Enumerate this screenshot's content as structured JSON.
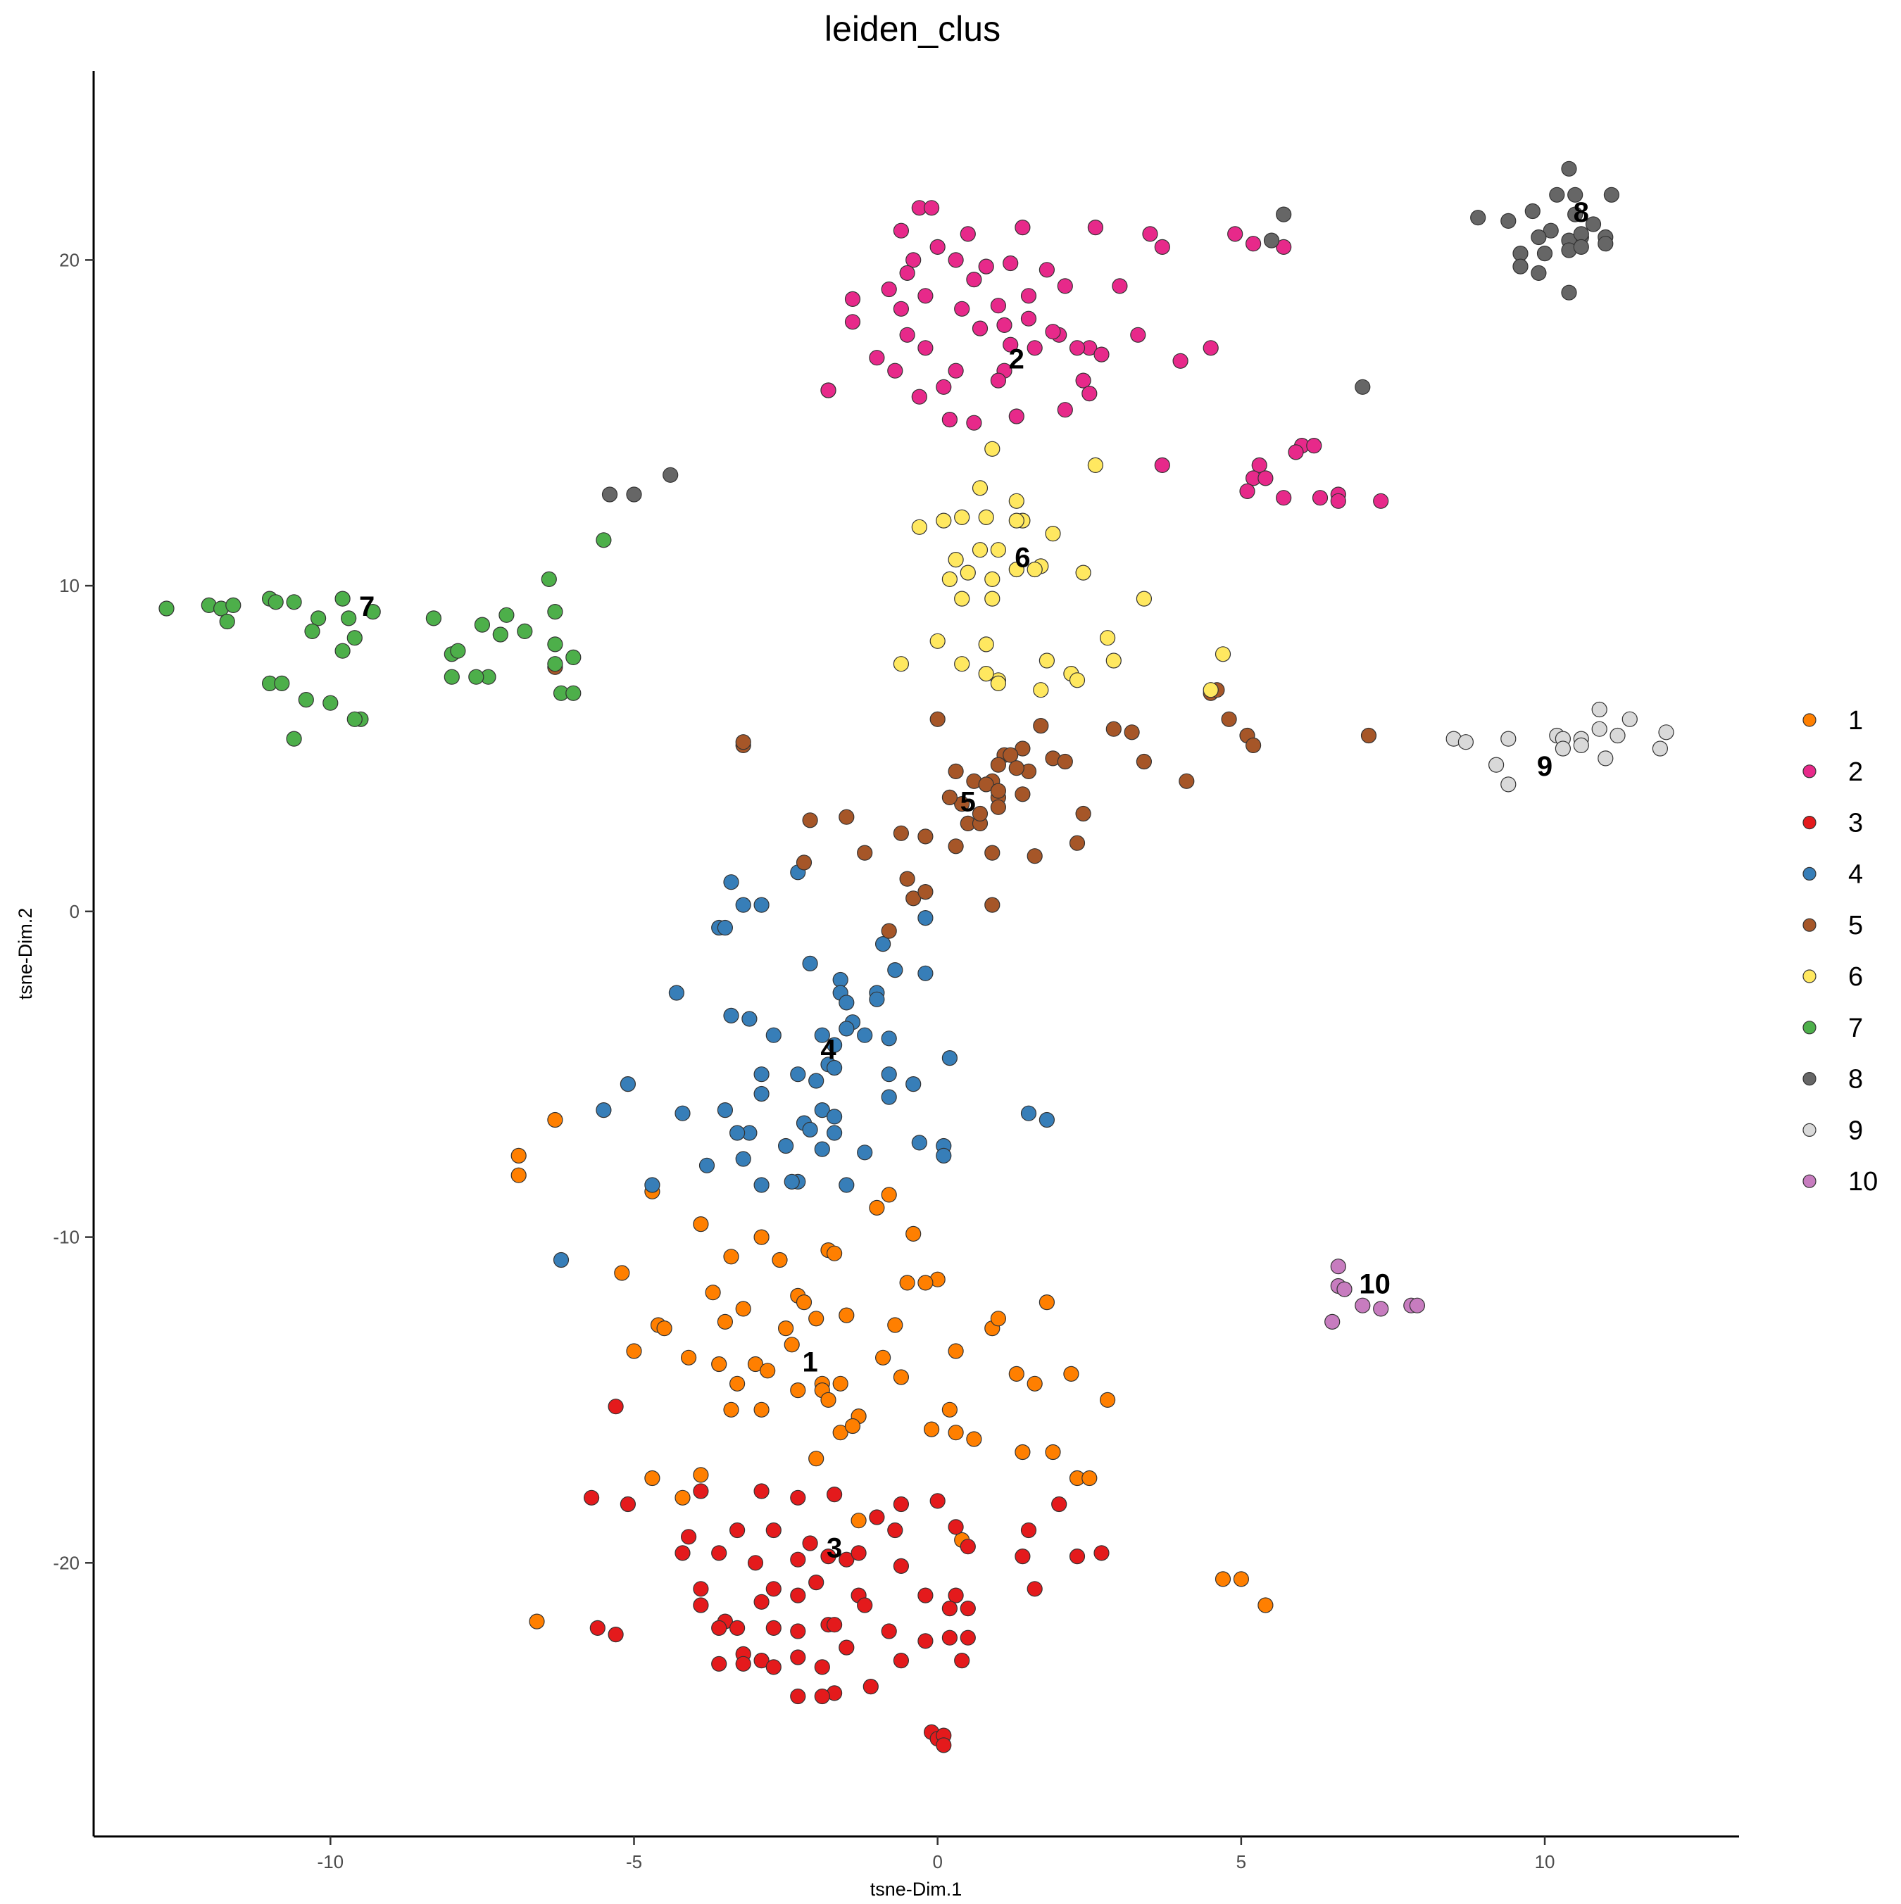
{
  "chart_data": {
    "type": "scatter",
    "title": "leiden_clus",
    "xlabel": "tsne-Dim.1",
    "ylabel": "tsne-Dim.2",
    "xlim": [
      -13.9,
      13.2
    ],
    "ylim": [
      -28.4,
      25.8
    ],
    "xticks": [
      -10,
      -5,
      0,
      5,
      10
    ],
    "yticks": [
      -20,
      -10,
      0,
      10,
      20
    ],
    "xtick_labels": [
      "-10",
      "-5",
      "0",
      "5",
      "10"
    ],
    "ytick_labels": [
      "-20",
      "-10",
      "0",
      "10",
      "20"
    ],
    "grid": false,
    "legend_position": "right",
    "point_outline": "#333333",
    "series": [
      {
        "name": "1",
        "color": "#FF7F00",
        "label": "1",
        "label_pos": [
          -2.1,
          -13.9
        ],
        "x": [
          -6.9,
          -6.9,
          -6.3,
          -4.7,
          -3.9,
          -3.4,
          -2.9,
          -2.6,
          -2.3,
          -2.0,
          -1.8,
          -1.7,
          -1.0,
          -0.8,
          -0.4,
          -0.5,
          0.0,
          -5.2,
          -3.7,
          -3.2,
          -2.5,
          -2.2,
          -1.5,
          -0.7,
          -0.2,
          0.3,
          -4.6,
          -4.1,
          -3.5,
          -3.0,
          -2.4,
          -1.9,
          -1.6,
          -0.9,
          0.9,
          1.0,
          1.8,
          -5.0,
          -4.5,
          -3.6,
          -3.3,
          -2.8,
          -2.3,
          -1.9,
          -1.3,
          -0.6,
          0.2,
          1.3,
          1.6,
          2.2,
          2.8,
          -3.4,
          -2.9,
          -1.8,
          -1.6,
          -1.4,
          -0.1,
          0.3,
          0.6,
          1.4,
          1.9,
          2.3,
          2.5,
          -4.7,
          -4.2,
          -3.9,
          -2.0,
          -1.3,
          0.4,
          4.7,
          5.0,
          5.4,
          -6.6
        ],
        "y": [
          -8.1,
          -7.5,
          -6.4,
          -8.6,
          -9.6,
          -10.6,
          -10.0,
          -10.7,
          -11.8,
          -12.5,
          -10.4,
          -10.5,
          -9.1,
          -8.7,
          -9.9,
          -11.4,
          -11.3,
          -11.1,
          -11.7,
          -12.2,
          -12.8,
          -12.0,
          -12.4,
          -12.7,
          -11.4,
          -13.5,
          -12.7,
          -13.7,
          -12.6,
          -13.9,
          -13.3,
          -14.5,
          -14.5,
          -13.7,
          -12.8,
          -12.5,
          -12.0,
          -13.5,
          -12.8,
          -13.9,
          -14.5,
          -14.1,
          -14.7,
          -14.7,
          -15.5,
          -14.3,
          -15.3,
          -14.2,
          -14.5,
          -14.2,
          -15.0,
          -15.3,
          -15.3,
          -15.0,
          -16.0,
          -15.8,
          -15.9,
          -16.0,
          -16.2,
          -16.6,
          -16.6,
          -17.4,
          -17.4,
          -17.4,
          -18.0,
          -17.3,
          -16.8,
          -18.7,
          -19.3,
          -20.5,
          -20.5,
          -21.3,
          -21.8
        ]
      },
      {
        "name": "2",
        "color": "#E7298A",
        "label": "2",
        "label_pos": [
          1.3,
          16.9
        ],
        "x": [
          -0.3,
          -0.1,
          0.5,
          1.4,
          2.6,
          3.5,
          4.9,
          5.2,
          5.7,
          -0.6,
          -0.4,
          0.0,
          0.8,
          1.2,
          1.8,
          3.7,
          -0.8,
          -0.5,
          0.3,
          0.6,
          1.0,
          1.5,
          2.1,
          3.0,
          -1.4,
          -0.6,
          -0.2,
          0.4,
          1.1,
          1.5,
          2.0,
          -1.4,
          -0.5,
          0.7,
          1.2,
          1.9,
          2.5,
          3.3,
          -1.0,
          -0.2,
          1.6,
          2.3,
          2.7,
          4.0,
          4.5,
          -0.7,
          0.3,
          1.1,
          2.4,
          -1.8,
          -0.3,
          0.1,
          1.0,
          2.5,
          5.3,
          6.0,
          5.9,
          -1.8,
          0.2,
          0.6,
          1.3,
          2.1,
          5.2,
          5.4,
          6.2,
          3.7,
          5.1,
          5.7,
          6.3,
          6.6,
          7.3,
          6.6
        ],
        "y": [
          21.6,
          21.6,
          20.8,
          21.0,
          21.0,
          20.8,
          20.8,
          20.5,
          20.4,
          20.9,
          20.0,
          20.4,
          19.8,
          19.9,
          19.7,
          20.4,
          19.1,
          19.6,
          20.0,
          19.4,
          18.6,
          18.9,
          19.2,
          19.2,
          18.8,
          18.5,
          18.9,
          18.5,
          18.0,
          18.2,
          17.7,
          18.1,
          17.7,
          17.9,
          17.4,
          17.8,
          17.3,
          17.7,
          17.0,
          17.3,
          17.3,
          17.3,
          17.1,
          16.9,
          17.3,
          16.6,
          16.6,
          16.6,
          16.3,
          16.0,
          15.8,
          16.1,
          16.3,
          15.9,
          13.7,
          14.3,
          14.1,
          16.0,
          15.1,
          15.0,
          15.2,
          15.4,
          13.3,
          13.3,
          14.3,
          13.7,
          12.9,
          12.7,
          12.7,
          12.8,
          12.6,
          12.6
        ]
      },
      {
        "name": "3",
        "color": "#E41A1C",
        "label": "3",
        "label_pos": [
          -1.7,
          -19.6
        ],
        "x": [
          -5.3,
          -5.7,
          -5.1,
          -3.9,
          -2.9,
          -2.3,
          -1.7,
          -1.0,
          -0.6,
          0.0,
          -4.1,
          -3.3,
          -2.7,
          -2.1,
          -1.5,
          -0.7,
          0.5,
          1.5,
          2.0,
          -4.2,
          -3.6,
          -3.0,
          -2.3,
          -1.8,
          -1.3,
          -0.6,
          0.3,
          1.4,
          2.3,
          2.7,
          -3.9,
          -2.7,
          -2.3,
          -1.3,
          -0.2,
          0.3,
          1.6,
          -3.9,
          -3.5,
          -2.9,
          -2.0,
          -1.2,
          0.2,
          0.5,
          -5.6,
          -5.3,
          -3.6,
          -3.3,
          -2.7,
          -2.3,
          -1.8,
          -1.7,
          -0.8,
          0.2,
          0.5,
          -3.2,
          -2.9,
          -2.3,
          -1.5,
          -0.6,
          -0.2,
          -3.6,
          -3.2,
          -2.7,
          -1.9,
          -1.1,
          -0.1,
          0.0,
          0.1,
          0.1,
          0.4,
          -2.3,
          -1.7,
          -1.9
        ],
        "y": [
          -15.2,
          -18.0,
          -18.2,
          -17.8,
          -17.8,
          -18.0,
          -17.9,
          -18.6,
          -18.2,
          -18.1,
          -19.2,
          -19.0,
          -19.0,
          -19.4,
          -19.9,
          -19.0,
          -19.5,
          -19.0,
          -18.2,
          -19.7,
          -19.7,
          -20.0,
          -19.9,
          -19.8,
          -19.7,
          -20.1,
          -18.9,
          -19.8,
          -19.8,
          -19.7,
          -20.8,
          -20.8,
          -21.0,
          -21.0,
          -21.0,
          -21.0,
          -20.8,
          -21.3,
          -21.8,
          -21.2,
          -20.6,
          -21.3,
          -21.4,
          -21.4,
          -22.0,
          -22.2,
          -22.0,
          -22.0,
          -22.0,
          -22.1,
          -21.9,
          -21.9,
          -22.1,
          -22.3,
          -22.3,
          -22.8,
          -23.0,
          -22.9,
          -22.6,
          -23.0,
          -22.4,
          -23.1,
          -23.1,
          -23.2,
          -23.2,
          -23.8,
          -25.2,
          -25.4,
          -25.3,
          -25.6,
          -23.0,
          -24.1,
          -24.0,
          -24.1
        ],
        "extra_points_x": [],
        "extra_points_y": []
      },
      {
        "name": "4",
        "color": "#377EB8",
        "label": "4",
        "label_pos": [
          -1.8,
          -4.3
        ],
        "x": [
          -3.4,
          -3.2,
          -2.9,
          -3.6,
          -3.5,
          -2.3,
          -2.1,
          -1.6,
          -1.6,
          -1.5,
          -1.4,
          -1.0,
          -1.0,
          -0.9,
          -0.7,
          -0.2,
          -0.2,
          -4.3,
          -3.4,
          -3.1,
          -2.7,
          -1.9,
          -1.7,
          -1.5,
          -1.2,
          -0.8,
          -2.9,
          -2.3,
          -2.0,
          -1.8,
          -1.7,
          -0.8,
          0.2,
          -3.5,
          -2.9,
          -1.9,
          -1.7,
          -0.8,
          -0.4,
          -4.2,
          -3.1,
          -2.2,
          -1.9,
          -1.7,
          -0.3,
          -3.3,
          -3.2,
          -2.5,
          -2.3,
          -2.4,
          -1.2,
          0.1,
          0.1,
          -3.8,
          -2.9,
          -2.1,
          -1.5,
          1.5,
          1.8,
          -5.5,
          -5.1,
          -6.2,
          -4.7
        ],
        "y": [
          0.9,
          0.2,
          0.2,
          -0.5,
          -0.5,
          1.2,
          -1.6,
          -2.1,
          -2.5,
          -2.8,
          -3.4,
          -2.5,
          -2.7,
          -1.0,
          -1.8,
          -0.2,
          -1.9,
          -2.5,
          -3.2,
          -3.3,
          -3.8,
          -3.8,
          -4.1,
          -3.6,
          -3.8,
          -3.9,
          -5.0,
          -5.0,
          -5.2,
          -4.7,
          -4.8,
          -5.0,
          -4.5,
          -6.1,
          -5.6,
          -6.1,
          -6.3,
          -5.7,
          -5.3,
          -6.2,
          -6.8,
          -6.5,
          -7.3,
          -6.8,
          -7.1,
          -6.8,
          -7.6,
          -7.2,
          -8.3,
          -8.3,
          -7.4,
          -7.2,
          -7.5,
          -7.8,
          -8.4,
          -6.7,
          -8.4,
          -6.2,
          -6.4,
          -6.1,
          -5.3,
          -10.7,
          -8.4
        ]
      },
      {
        "name": "5",
        "color": "#A65628",
        "label": "5",
        "label_pos": [
          0.5,
          3.3
        ],
        "x": [
          -3.2,
          -3.2,
          0.0,
          1.1,
          1.4,
          1.7,
          0.3,
          0.9,
          1.0,
          1.2,
          1.9,
          2.1,
          2.9,
          3.2,
          3.4,
          0.4,
          0.6,
          0.8,
          1.0,
          1.5,
          2.4,
          4.1,
          4.5,
          4.8,
          5.1,
          5.2,
          -2.1,
          -1.5,
          -0.6,
          -0.2,
          0.5,
          0.7,
          1.0,
          1.4,
          -2.2,
          -1.2,
          -0.4,
          0.3,
          0.9,
          1.6,
          2.3,
          -0.5,
          -0.2,
          -0.8,
          0.9,
          -6.3,
          7.1,
          4.6,
          0.2,
          0.7,
          1.0,
          1.3
        ],
        "y": [
          5.1,
          5.2,
          5.9,
          4.8,
          5.0,
          5.7,
          4.3,
          4.0,
          4.5,
          4.8,
          4.7,
          4.6,
          5.6,
          5.5,
          4.6,
          3.3,
          4.0,
          3.9,
          3.5,
          4.3,
          3.0,
          4.0,
          6.7,
          5.9,
          5.4,
          5.1,
          2.8,
          2.9,
          2.4,
          2.3,
          2.7,
          2.7,
          3.2,
          3.6,
          1.5,
          1.8,
          0.4,
          2.0,
          1.8,
          1.7,
          2.1,
          1.0,
          0.6,
          -0.6,
          0.2,
          7.5,
          5.4,
          6.8,
          3.5,
          3.0,
          3.7,
          4.4
        ]
      },
      {
        "name": "6",
        "color": "#FFE860",
        "label": "6",
        "label_pos": [
          1.4,
          10.8
        ],
        "x": [
          0.9,
          0.7,
          1.3,
          1.4,
          2.6,
          -0.3,
          0.1,
          0.4,
          0.8,
          1.3,
          1.9,
          0.3,
          0.7,
          1.0,
          1.7,
          2.4,
          0.2,
          0.5,
          0.9,
          1.3,
          1.6,
          3.4,
          0.0,
          0.8,
          1.0,
          2.8,
          2.9,
          -0.6,
          0.4,
          0.8,
          1.0,
          1.8,
          2.2,
          4.5,
          4.7,
          1.7,
          0.9,
          0.4,
          2.3
        ],
        "y": [
          14.2,
          13.0,
          12.6,
          12.0,
          13.7,
          11.8,
          12.0,
          12.1,
          12.1,
          12.0,
          11.6,
          10.8,
          11.1,
          11.1,
          10.6,
          10.4,
          10.2,
          10.4,
          10.2,
          10.5,
          10.5,
          9.6,
          8.3,
          8.2,
          7.1,
          8.4,
          7.7,
          7.6,
          7.6,
          7.3,
          7.0,
          7.7,
          7.3,
          6.8,
          7.9,
          6.8,
          9.6,
          9.6,
          7.1
        ]
      },
      {
        "name": "7",
        "color": "#4DAF4A",
        "label": "7",
        "label_pos": [
          -9.4,
          9.3
        ],
        "x": [
          -12.7,
          -12.0,
          -11.8,
          -11.6,
          -11.7,
          -11.0,
          -10.9,
          -10.6,
          -9.8,
          -9.7,
          -9.3,
          -10.2,
          -10.3,
          -9.6,
          -9.8,
          -8.3,
          -7.5,
          -7.1,
          -6.8,
          -6.3,
          -8.0,
          -7.9,
          -7.2,
          -7.4,
          -6.4,
          -6.3,
          -6.3,
          -11.0,
          -10.8,
          -10.4,
          -10.0,
          -9.5,
          -8.0,
          -7.6,
          -6.2,
          -6.0,
          -6.0,
          -10.6,
          -9.6,
          -5.5
        ],
        "y": [
          9.3,
          9.4,
          9.3,
          9.4,
          8.9,
          9.6,
          9.5,
          9.5,
          9.6,
          9.0,
          9.2,
          9.0,
          8.6,
          8.4,
          8.0,
          9.0,
          8.8,
          9.1,
          8.6,
          9.2,
          7.9,
          8.0,
          8.5,
          7.2,
          10.2,
          8.2,
          7.6,
          7.0,
          7.0,
          6.5,
          6.4,
          5.9,
          7.2,
          7.2,
          6.7,
          7.8,
          6.7,
          5.3,
          5.9,
          11.4
        ]
      },
      {
        "name": "8",
        "color": "#666666",
        "label": "8",
        "label_pos": [
          10.6,
          21.4
        ],
        "x": [
          10.4,
          10.2,
          10.5,
          11.1,
          8.9,
          9.4,
          9.8,
          10.1,
          10.5,
          10.8,
          11.0,
          10.6,
          9.9,
          10.4,
          10.6,
          9.6,
          10.0,
          10.4,
          10.6,
          11.0,
          9.6,
          10.4,
          9.9,
          5.7,
          5.5,
          7.0,
          -5.4,
          -5.0,
          -4.4
        ],
        "y": [
          22.8,
          22.0,
          22.0,
          22.0,
          21.3,
          21.2,
          21.5,
          20.9,
          21.4,
          21.1,
          20.7,
          20.7,
          20.7,
          20.6,
          20.8,
          20.2,
          20.2,
          20.3,
          20.4,
          20.5,
          19.8,
          19.0,
          19.6,
          21.4,
          20.6,
          16.1,
          12.8,
          12.8,
          13.4
        ]
      },
      {
        "name": "9",
        "color": "#D9D9D9",
        "label": "9",
        "label_pos": [
          10.0,
          4.4
        ],
        "x": [
          8.5,
          8.7,
          9.4,
          10.2,
          10.3,
          10.9,
          11.2,
          11.4,
          11.9,
          12.0,
          10.9,
          10.6,
          10.3,
          10.6,
          11.0,
          9.2,
          9.4
        ],
        "y": [
          5.3,
          5.2,
          5.3,
          5.4,
          5.3,
          5.6,
          5.4,
          5.9,
          5.0,
          5.5,
          6.2,
          5.3,
          5.0,
          5.1,
          4.7,
          4.5,
          3.9
        ]
      },
      {
        "name": "10",
        "color": "#C77CBF",
        "label": "10",
        "label_pos": [
          7.2,
          -11.5
        ],
        "x": [
          6.6,
          6.6,
          6.7,
          6.5,
          7.0,
          7.3,
          7.8,
          7.9
        ],
        "y": [
          -10.9,
          -11.5,
          -11.6,
          -12.6,
          -12.1,
          -12.2,
          -12.1,
          -12.1
        ]
      }
    ]
  },
  "legend": {
    "items": [
      {
        "label": "1",
        "color": "#FF7F00"
      },
      {
        "label": "2",
        "color": "#E7298A"
      },
      {
        "label": "3",
        "color": "#E41A1C"
      },
      {
        "label": "4",
        "color": "#377EB8"
      },
      {
        "label": "5",
        "color": "#A65628"
      },
      {
        "label": "6",
        "color": "#FFE860"
      },
      {
        "label": "7",
        "color": "#4DAF4A"
      },
      {
        "label": "8",
        "color": "#666666"
      },
      {
        "label": "9",
        "color": "#D9D9D9"
      },
      {
        "label": "10",
        "color": "#C77CBF"
      }
    ]
  }
}
